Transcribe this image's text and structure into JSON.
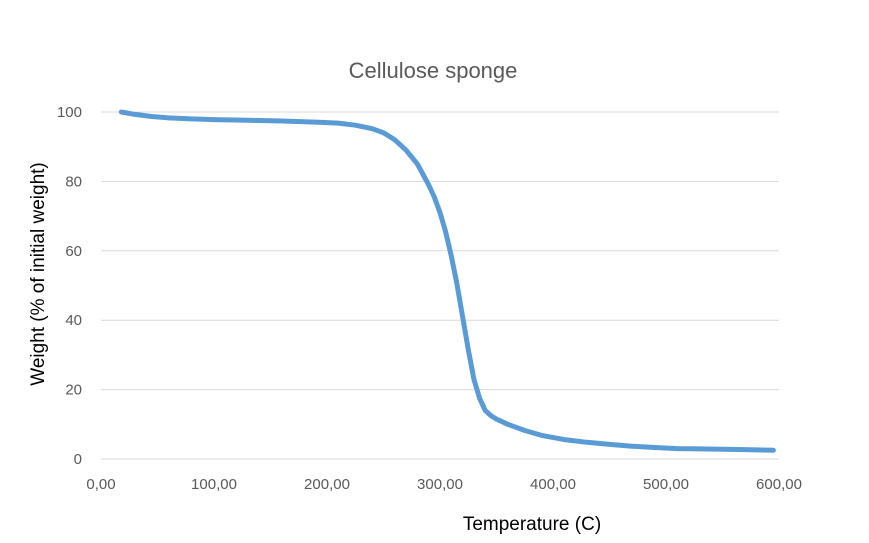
{
  "chart_data": {
    "type": "line",
    "title": "Cellulose sponge",
    "xlabel": "Temperature (C)",
    "ylabel": "Weight (% of initial weight)",
    "xlim": [
      0,
      600
    ],
    "ylim": [
      0,
      100
    ],
    "x_ticks": [
      0,
      100,
      200,
      300,
      400,
      500,
      600
    ],
    "x_tick_labels": [
      "0,00",
      "100,00",
      "200,00",
      "300,00",
      "400,00",
      "500,00",
      "600,00"
    ],
    "y_ticks": [
      0,
      20,
      40,
      60,
      80,
      100
    ],
    "y_tick_labels": [
      "0",
      "20",
      "40",
      "60",
      "80",
      "100"
    ],
    "grid": true,
    "legend": "none",
    "colors": {
      "series": "#5b9bd5",
      "grid": "#d9d9d9",
      "text": "#595959"
    },
    "series": [
      {
        "x": [
          18,
          30,
          45,
          60,
          80,
          100,
          130,
          160,
          190,
          210,
          225,
          240,
          250,
          260,
          270,
          280,
          290,
          295,
          300,
          305,
          310,
          315,
          320,
          325,
          330,
          335,
          340,
          345,
          350,
          360,
          375,
          390,
          410,
          430,
          450,
          470,
          490,
          510,
          530,
          550,
          570,
          585,
          595
        ],
        "y": [
          100,
          99.3,
          98.7,
          98.3,
          98.0,
          97.8,
          97.6,
          97.4,
          97.1,
          96.8,
          96.2,
          95.2,
          94.0,
          92.0,
          89.0,
          85.0,
          79.0,
          75.5,
          71.0,
          65.5,
          58.5,
          50.5,
          41.0,
          31.5,
          23.0,
          17.5,
          14.0,
          12.5,
          11.5,
          10.0,
          8.2,
          6.8,
          5.6,
          4.8,
          4.2,
          3.7,
          3.3,
          3.0,
          2.9,
          2.8,
          2.7,
          2.6,
          2.5
        ]
      }
    ]
  }
}
